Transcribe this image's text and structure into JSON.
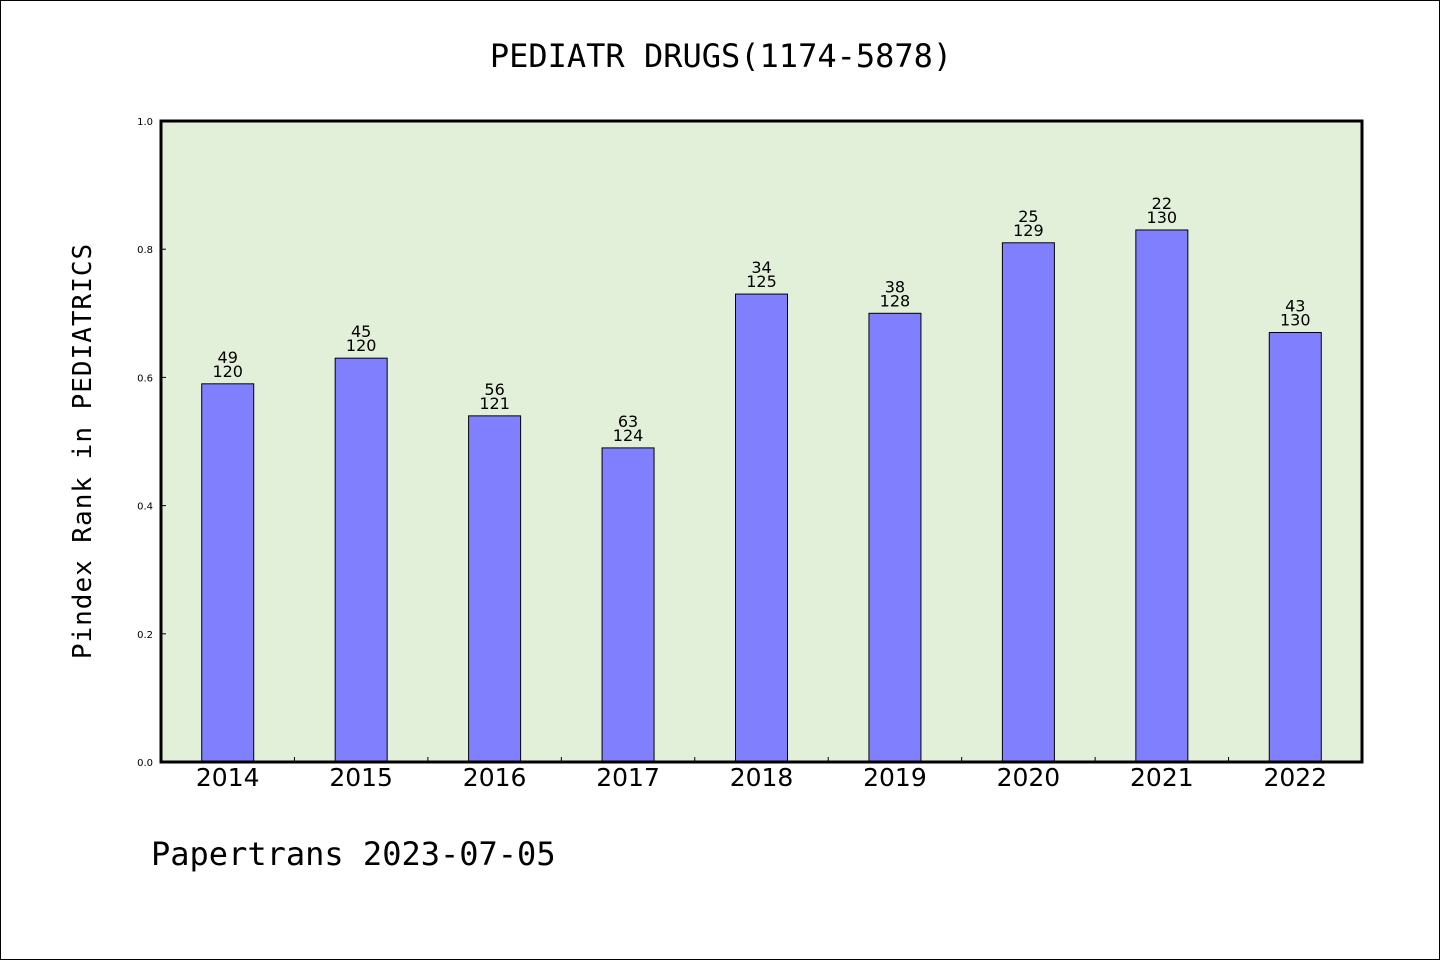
{
  "chart_data": {
    "type": "bar",
    "title": "PEDIATR DRUGS(1174-5878)",
    "xlabel": "",
    "ylabel": "Pindex Rank in PEDIATRICS",
    "ylim": [
      0,
      1.0
    ],
    "yticks": [
      "0.0",
      "0.2",
      "0.4",
      "0.6",
      "0.8",
      "1.0"
    ],
    "categories": [
      "2014",
      "2015",
      "2016",
      "2017",
      "2018",
      "2019",
      "2020",
      "2021",
      "2022"
    ],
    "values": [
      0.59,
      0.63,
      0.54,
      0.49,
      0.73,
      0.7,
      0.81,
      0.83,
      0.67
    ],
    "ranks": [
      "49",
      "45",
      "56",
      "63",
      "34",
      "38",
      "25",
      "22",
      "43"
    ],
    "totals": [
      "120",
      "120",
      "121",
      "124",
      "125",
      "128",
      "129",
      "130",
      "130"
    ],
    "grid": false,
    "legend": "none",
    "colors": {
      "bar": "#8080ff",
      "plot_background": "#e2f0d9",
      "axis": "#000000"
    }
  },
  "footer": "Papertrans 2023-07-05"
}
